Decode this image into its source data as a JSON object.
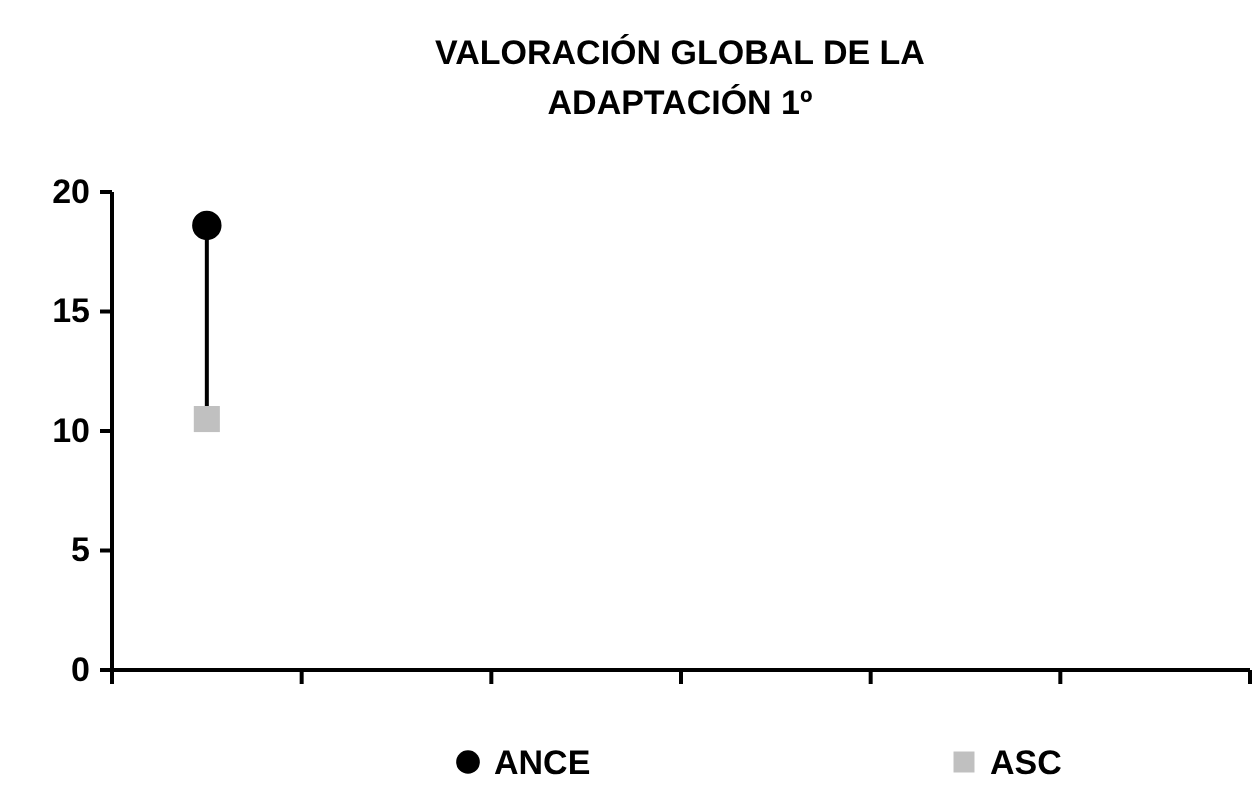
{
  "chart_data": {
    "type": "scatter",
    "title": "VALORACIÓN GLOBAL DE LA ADAPTACIÓN 1º",
    "categories": [
      null,
      null,
      null,
      null,
      null,
      null
    ],
    "series": [
      {
        "name": "ANCE",
        "color": "#000000",
        "marker": "circle",
        "values": [
          18.6,
          null,
          null,
          null,
          null,
          null
        ]
      },
      {
        "name": "ASC",
        "color": "#c0c0c0",
        "marker": "square",
        "values": [
          10.5,
          null,
          null,
          null,
          null,
          null
        ]
      }
    ],
    "ylim": [
      0,
      20
    ],
    "yticks": [
      0,
      5,
      10,
      15,
      20
    ],
    "legend": "bottom"
  }
}
